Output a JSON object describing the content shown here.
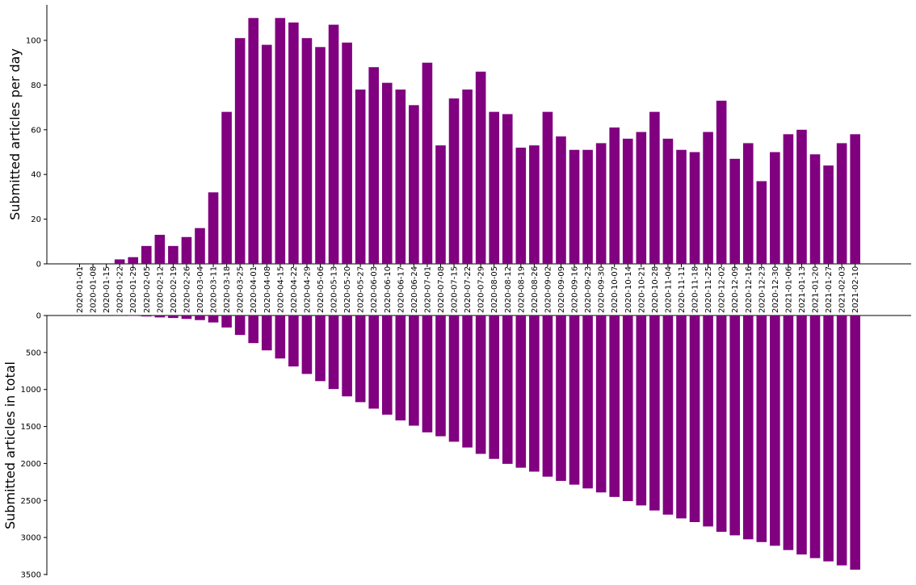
{
  "chart_data": [
    {
      "type": "bar",
      "ylabel": "Submitted articles per day",
      "ylim": [
        0,
        115
      ],
      "yticks": [
        0,
        20,
        40,
        60,
        80,
        100
      ],
      "color": "#800080",
      "categories": [
        "2020-01-01",
        "2020-01-08",
        "2020-01-15",
        "2020-01-22",
        "2020-01-29",
        "2020-02-05",
        "2020-02-12",
        "2020-02-19",
        "2020-02-26",
        "2020-03-04",
        "2020-03-11",
        "2020-03-18",
        "2020-03-25",
        "2020-04-01",
        "2020-04-08",
        "2020-04-15",
        "2020-04-22",
        "2020-04-29",
        "2020-05-06",
        "2020-05-13",
        "2020-05-20",
        "2020-05-27",
        "2020-06-03",
        "2020-06-10",
        "2020-06-17",
        "2020-06-24",
        "2020-07-01",
        "2020-07-08",
        "2020-07-15",
        "2020-07-22",
        "2020-07-29",
        "2020-08-05",
        "2020-08-12",
        "2020-08-19",
        "2020-08-26",
        "2020-09-02",
        "2020-09-09",
        "2020-09-16",
        "2020-09-23",
        "2020-09-30",
        "2020-10-07",
        "2020-10-14",
        "2020-10-21",
        "2020-10-28",
        "2020-11-04",
        "2020-11-11",
        "2020-11-18",
        "2020-11-25",
        "2020-12-02",
        "2020-12-09",
        "2020-12-16",
        "2020-12-23",
        "2020-12-30",
        "2021-01-06",
        "2021-01-13",
        "2021-01-20",
        "2021-01-27",
        "2021-02-03",
        "2021-02-10"
      ],
      "values": [
        0,
        0,
        0,
        2,
        3,
        8,
        13,
        8,
        12,
        16,
        32,
        68,
        101,
        110,
        98,
        110,
        108,
        101,
        97,
        107,
        99,
        78,
        88,
        81,
        78,
        71,
        90,
        53,
        74,
        78,
        86,
        68,
        67,
        52,
        53,
        68,
        57,
        51,
        51,
        54,
        61,
        56,
        59,
        68,
        56,
        51,
        50,
        59,
        73,
        47,
        54,
        37,
        50,
        58,
        60,
        49,
        44,
        54,
        58
      ]
    },
    {
      "type": "bar",
      "ylabel": "Submitted articles in total",
      "ylim": [
        0,
        3500
      ],
      "inverted": true,
      "yticks": [
        0,
        500,
        1000,
        1500,
        2000,
        2500,
        3000,
        3500
      ],
      "color": "#800080",
      "categories": [
        "2020-01-01",
        "2020-01-08",
        "2020-01-15",
        "2020-01-22",
        "2020-01-29",
        "2020-02-05",
        "2020-02-12",
        "2020-02-19",
        "2020-02-26",
        "2020-03-04",
        "2020-03-11",
        "2020-03-18",
        "2020-03-25",
        "2020-04-01",
        "2020-04-08",
        "2020-04-15",
        "2020-04-22",
        "2020-04-29",
        "2020-05-06",
        "2020-05-13",
        "2020-05-20",
        "2020-05-27",
        "2020-06-03",
        "2020-06-10",
        "2020-06-17",
        "2020-06-24",
        "2020-07-01",
        "2020-07-08",
        "2020-07-15",
        "2020-07-22",
        "2020-07-29",
        "2020-08-05",
        "2020-08-12",
        "2020-08-19",
        "2020-08-26",
        "2020-09-02",
        "2020-09-09",
        "2020-09-16",
        "2020-09-23",
        "2020-09-30",
        "2020-10-07",
        "2020-10-14",
        "2020-10-21",
        "2020-10-28",
        "2020-11-04",
        "2020-11-11",
        "2020-11-18",
        "2020-11-25",
        "2020-12-02",
        "2020-12-09",
        "2020-12-16",
        "2020-12-23",
        "2020-12-30",
        "2021-01-06",
        "2021-01-13",
        "2021-01-20",
        "2021-01-27",
        "2021-02-03",
        "2021-02-10"
      ],
      "values": [
        0,
        0,
        0,
        2,
        5,
        13,
        26,
        34,
        46,
        62,
        94,
        162,
        263,
        373,
        471,
        581,
        689,
        790,
        887,
        994,
        1093,
        1171,
        1259,
        1340,
        1418,
        1489,
        1579,
        1632,
        1706,
        1784,
        1870,
        1938,
        2005,
        2057,
        2110,
        2178,
        2235,
        2286,
        2337,
        2391,
        2452,
        2508,
        2567,
        2635,
        2691,
        2742,
        2792,
        2851,
        2924,
        2971,
        3025,
        3062,
        3112,
        3170,
        3230,
        3279,
        3323,
        3377,
        3435
      ]
    }
  ]
}
